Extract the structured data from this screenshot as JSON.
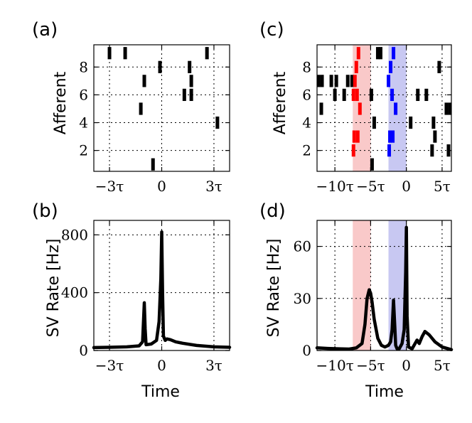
{
  "colors": {
    "spike": "#000000",
    "pattern1": "#ff0000",
    "pattern2": "#0000ff",
    "band1": "#f9c9c9",
    "band2": "#c8c8f2",
    "line": "#000000"
  },
  "chart_data": [
    {
      "panel": "(a)",
      "type": "scatter",
      "marker": "spike-tick",
      "xlim": [
        -3.9,
        3.9
      ],
      "ylim": [
        0.5,
        9.6
      ],
      "xticks": [
        {
          "v": -3,
          "label": "−3τ"
        },
        {
          "v": 0,
          "label": "0"
        },
        {
          "v": 3,
          "label": "3τ"
        }
      ],
      "yticks": [
        {
          "v": 2,
          "label": "2"
        },
        {
          "v": 4,
          "label": "4"
        },
        {
          "v": 6,
          "label": "6"
        },
        {
          "v": 8,
          "label": "8"
        }
      ],
      "xlabel": "",
      "ylabel": "Afferent",
      "grid": true,
      "spikes": [
        {
          "x": -3.0,
          "y": 9,
          "c": 0
        },
        {
          "x": -2.1,
          "y": 9,
          "c": 0
        },
        {
          "x": 2.6,
          "y": 9,
          "c": 0
        },
        {
          "x": -0.1,
          "y": 8,
          "c": 0
        },
        {
          "x": 1.6,
          "y": 8,
          "c": 0
        },
        {
          "x": -1.0,
          "y": 7,
          "c": 0
        },
        {
          "x": 1.7,
          "y": 7,
          "c": 0
        },
        {
          "x": 1.3,
          "y": 6,
          "c": 0
        },
        {
          "x": 1.7,
          "y": 6,
          "c": 0
        },
        {
          "x": -1.2,
          "y": 5,
          "c": 0
        },
        {
          "x": 3.2,
          "y": 4,
          "c": 0
        },
        {
          "x": -0.5,
          "y": 1,
          "c": 0
        }
      ]
    },
    {
      "panel": "(b)",
      "type": "line",
      "xlim": [
        -3.9,
        3.9
      ],
      "ylim": [
        0,
        900
      ],
      "xticks": [
        {
          "v": -3,
          "label": "−3τ"
        },
        {
          "v": 0,
          "label": "0"
        },
        {
          "v": 3,
          "label": "3τ"
        }
      ],
      "yticks": [
        {
          "v": 0,
          "label": "0"
        },
        {
          "v": 400,
          "label": "400"
        },
        {
          "v": 800,
          "label": "800"
        }
      ],
      "xlabel": "Time",
      "ylabel": "SV Rate [Hz]",
      "grid": true,
      "x": [
        -3.9,
        -3.0,
        -2.0,
        -1.3,
        -1.1,
        -1.0,
        -0.95,
        -0.9,
        -0.6,
        -0.3,
        -0.15,
        -0.05,
        0.0,
        0.05,
        0.1,
        0.2,
        0.3,
        0.5,
        0.8,
        1.2,
        2.0,
        3.0,
        3.9
      ],
      "y": [
        20,
        22,
        25,
        32,
        60,
        330,
        150,
        40,
        45,
        70,
        200,
        500,
        820,
        400,
        100,
        70,
        80,
        75,
        60,
        50,
        35,
        25,
        22
      ]
    },
    {
      "panel": "(c)",
      "type": "scatter",
      "marker": "spike-tick",
      "xlim": [
        -12.5,
        6.3
      ],
      "ylim": [
        0.5,
        9.6
      ],
      "xticks": [
        {
          "v": -10,
          "label": "−10τ"
        },
        {
          "v": -5,
          "label": "−5τ"
        },
        {
          "v": 0,
          "label": "0"
        },
        {
          "v": 5,
          "label": "5τ"
        }
      ],
      "yticks": [
        {
          "v": 2,
          "label": "2"
        },
        {
          "v": 4,
          "label": "4"
        },
        {
          "v": 6,
          "label": "6"
        },
        {
          "v": 8,
          "label": "8"
        }
      ],
      "xlabel": "",
      "ylabel": "Afferent",
      "grid": true,
      "bands": [
        {
          "x0": -7.5,
          "x1": -5.0,
          "c": 1
        },
        {
          "x0": -2.5,
          "x1": 0.0,
          "c": 2
        }
      ],
      "spikes": [
        {
          "x": -6.7,
          "y": 9,
          "c": 1
        },
        {
          "x": -1.8,
          "y": 9,
          "c": 2
        },
        {
          "x": -4.0,
          "y": 9,
          "c": 0
        },
        {
          "x": -3.6,
          "y": 9,
          "c": 0
        },
        {
          "x": -7.0,
          "y": 8,
          "c": 1
        },
        {
          "x": -2.2,
          "y": 8,
          "c": 2
        },
        {
          "x": 4.6,
          "y": 8,
          "c": 0
        },
        {
          "x": -12.3,
          "y": 7,
          "c": 0
        },
        {
          "x": -11.8,
          "y": 7,
          "c": 0
        },
        {
          "x": -10.5,
          "y": 7,
          "c": 0
        },
        {
          "x": -9.8,
          "y": 7,
          "c": 0
        },
        {
          "x": -8.2,
          "y": 7,
          "c": 0
        },
        {
          "x": -7.6,
          "y": 7,
          "c": 0
        },
        {
          "x": -7.2,
          "y": 7,
          "c": 1
        },
        {
          "x": -2.5,
          "y": 7,
          "c": 2
        },
        {
          "x": -10.0,
          "y": 6,
          "c": 0
        },
        {
          "x": -8.7,
          "y": 6,
          "c": 0
        },
        {
          "x": -7.4,
          "y": 6,
          "c": 1
        },
        {
          "x": -6.9,
          "y": 6,
          "c": 1
        },
        {
          "x": -4.9,
          "y": 6,
          "c": 0
        },
        {
          "x": -2.0,
          "y": 6,
          "c": 2
        },
        {
          "x": 1.6,
          "y": 6,
          "c": 0
        },
        {
          "x": 2.8,
          "y": 6,
          "c": 0
        },
        {
          "x": -11.9,
          "y": 5,
          "c": 0
        },
        {
          "x": -6.5,
          "y": 5,
          "c": 1
        },
        {
          "x": -1.5,
          "y": 5,
          "c": 2
        },
        {
          "x": 5.6,
          "y": 5,
          "c": 0
        },
        {
          "x": 6.1,
          "y": 5,
          "c": 0
        },
        {
          "x": -4.5,
          "y": 4,
          "c": 0
        },
        {
          "x": 0.6,
          "y": 4,
          "c": 0
        },
        {
          "x": 3.8,
          "y": 4,
          "c": 0
        },
        {
          "x": -7.3,
          "y": 3,
          "c": 1
        },
        {
          "x": -6.8,
          "y": 3,
          "c": 1
        },
        {
          "x": -2.3,
          "y": 3,
          "c": 2
        },
        {
          "x": -1.9,
          "y": 3,
          "c": 2
        },
        {
          "x": 4.0,
          "y": 3,
          "c": 0
        },
        {
          "x": -7.4,
          "y": 2,
          "c": 1
        },
        {
          "x": -2.4,
          "y": 2,
          "c": 2
        },
        {
          "x": 3.6,
          "y": 2,
          "c": 0
        },
        {
          "x": 5.9,
          "y": 2,
          "c": 0
        },
        {
          "x": -4.8,
          "y": 1,
          "c": 0
        }
      ]
    },
    {
      "panel": "(d)",
      "type": "line",
      "xlim": [
        -12.5,
        6.3
      ],
      "ylim": [
        0,
        75
      ],
      "xticks": [
        {
          "v": -10,
          "label": "−10τ"
        },
        {
          "v": -5,
          "label": "−5τ"
        },
        {
          "v": 0,
          "label": "0"
        },
        {
          "v": 5,
          "label": "5τ"
        }
      ],
      "yticks": [
        {
          "v": 0,
          "label": "0"
        },
        {
          "v": 30,
          "label": "30"
        },
        {
          "v": 60,
          "label": "60"
        }
      ],
      "xlabel": "Time",
      "ylabel": "SV Rate [Hz]",
      "grid": true,
      "bands": [
        {
          "x0": -7.5,
          "x1": -5.0,
          "c": 1
        },
        {
          "x0": -2.5,
          "x1": 0.0,
          "c": 2
        }
      ],
      "x": [
        -12.5,
        -11.0,
        -9.5,
        -8.0,
        -7.0,
        -6.2,
        -5.8,
        -5.5,
        -5.2,
        -5.0,
        -4.8,
        -4.5,
        -4.0,
        -3.5,
        -3.0,
        -2.5,
        -2.2,
        -2.0,
        -1.8,
        -1.6,
        -1.5,
        -1.3,
        -1.0,
        -0.6,
        -0.3,
        -0.1,
        0.0,
        0.1,
        0.3,
        0.8,
        1.5,
        1.8,
        2.2,
        2.6,
        3.2,
        4.0,
        5.0,
        6.3
      ],
      "y": [
        1.5,
        1.2,
        1.0,
        0.8,
        1.5,
        4.0,
        15,
        30,
        35,
        33,
        28,
        18,
        7,
        3,
        2,
        3,
        5,
        12,
        29,
        12,
        3,
        1,
        1,
        4,
        12,
        45,
        71,
        20,
        2,
        1,
        6,
        4,
        8,
        11,
        9,
        5,
        2,
        0.5
      ]
    }
  ]
}
